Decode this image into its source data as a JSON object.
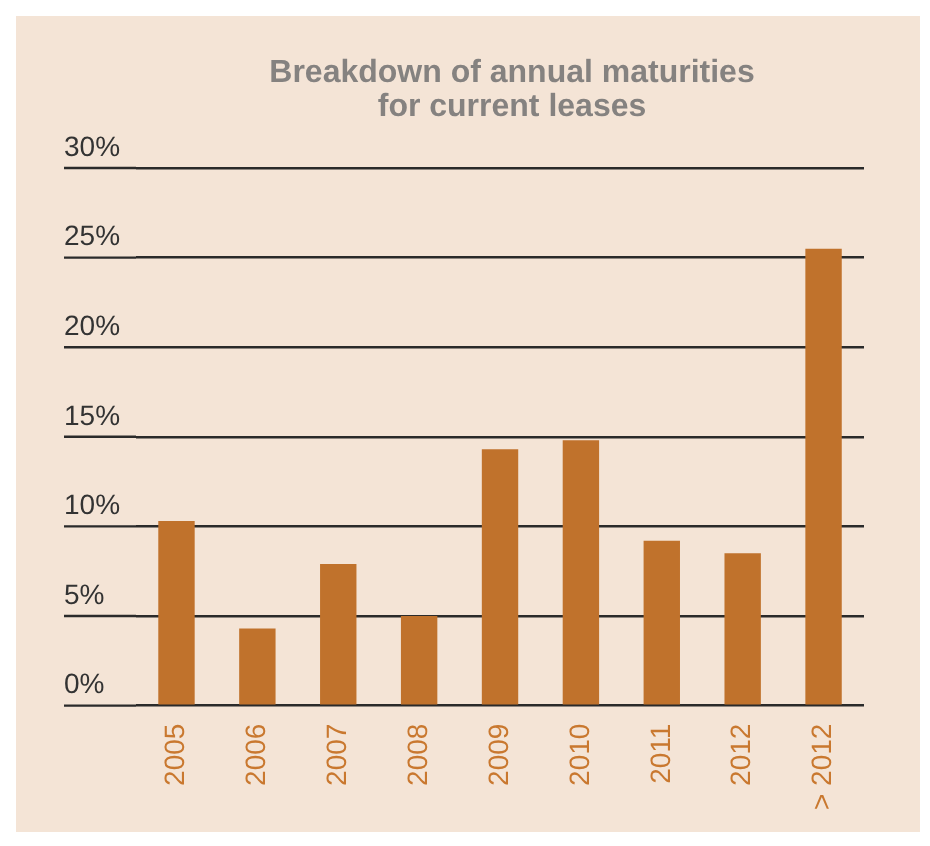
{
  "chart_data": {
    "type": "bar",
    "title": "Breakdown of annual maturities for current leases",
    "categories": [
      "2005",
      "2006",
      "2007",
      "2008",
      "2009",
      "2010",
      "2011",
      "2012",
      "> 2012"
    ],
    "values": [
      10.3,
      4.3,
      7.9,
      5.0,
      14.3,
      14.8,
      9.2,
      8.5,
      25.5
    ],
    "color": "#c0722c",
    "ylim": [
      0,
      30
    ],
    "yticks": [
      {
        "value": 0,
        "label": "0%"
      },
      {
        "value": 5,
        "label": "5%"
      },
      {
        "value": 10,
        "label": "10%"
      },
      {
        "value": 15,
        "label": "15%"
      },
      {
        "value": 20,
        "label": "20%"
      },
      {
        "value": 25,
        "label": "25%"
      },
      {
        "value": 30,
        "label": "30%"
      }
    ],
    "grid": "y",
    "legend": false
  }
}
